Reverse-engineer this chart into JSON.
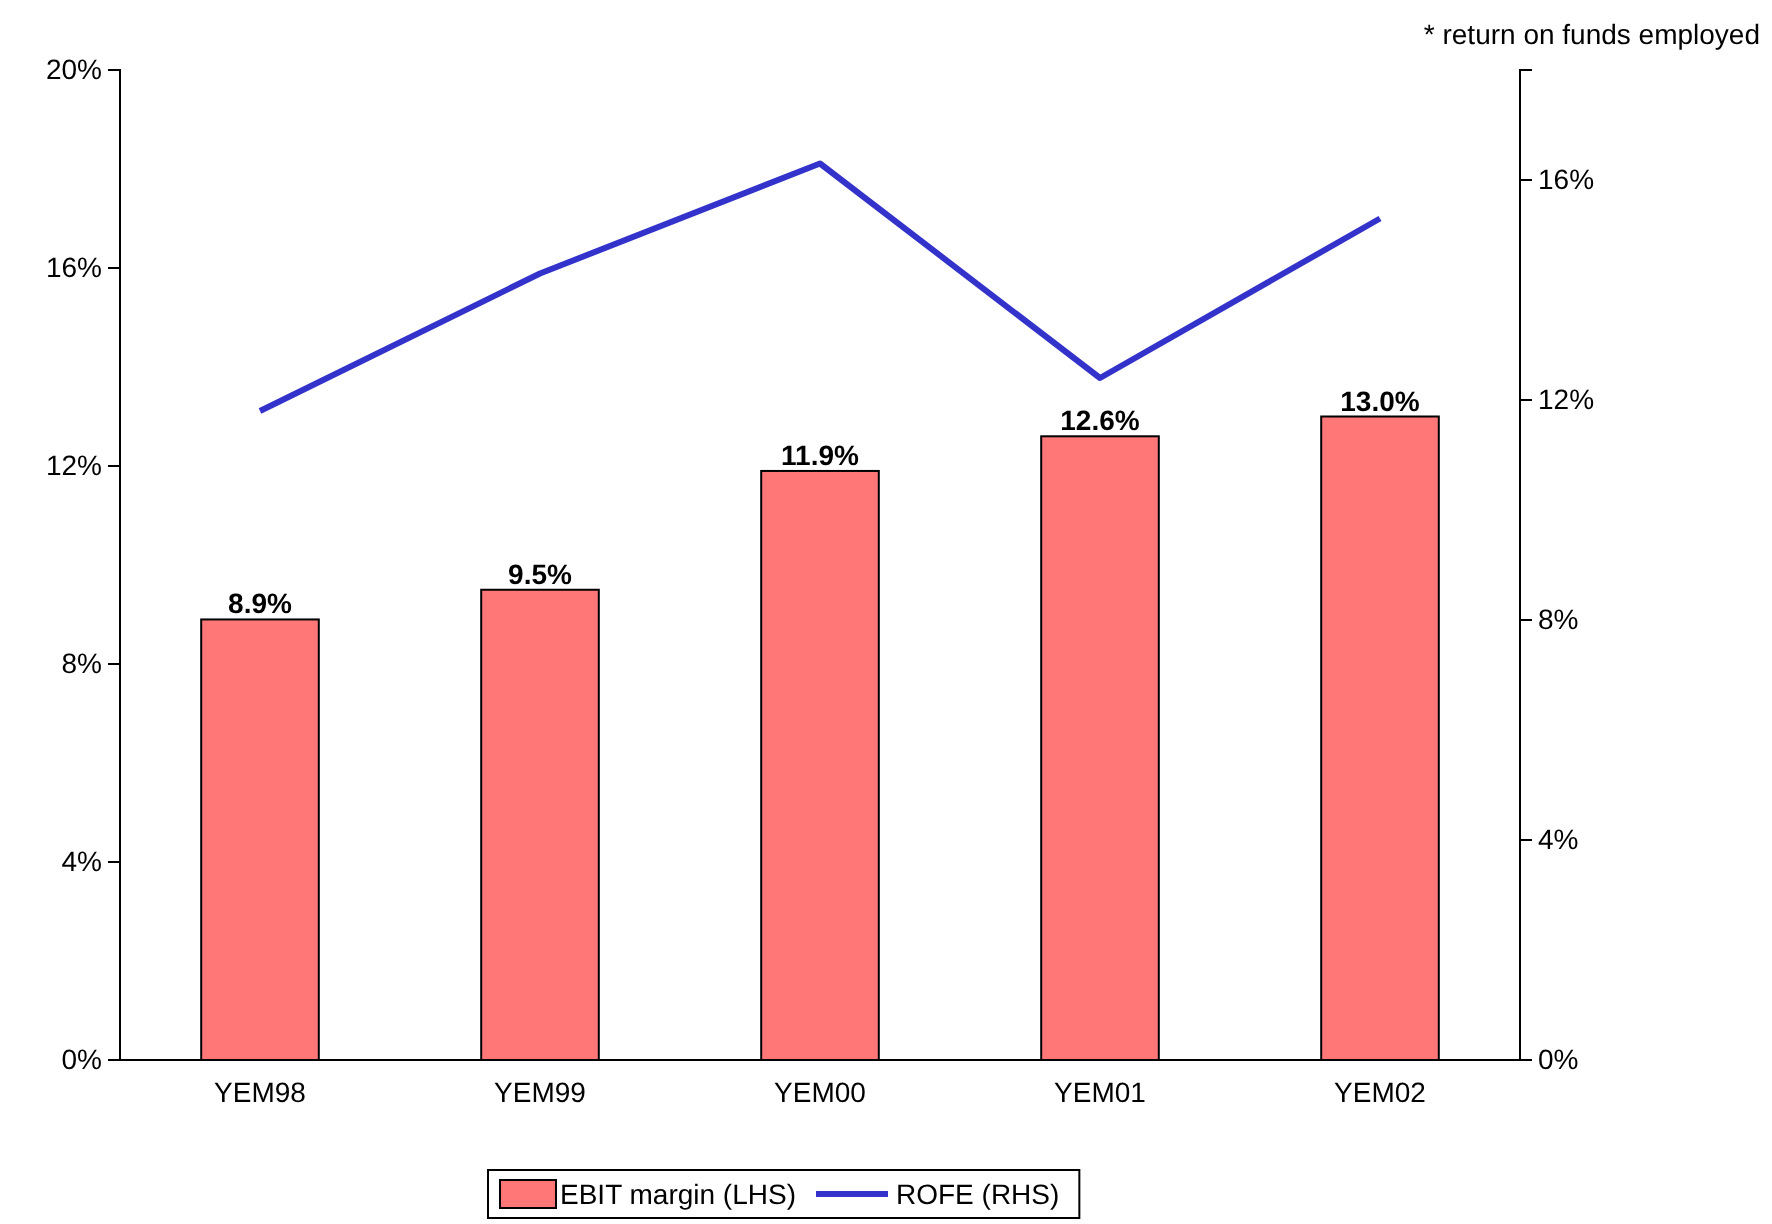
{
  "chart_data": {
    "type": "bar",
    "categories": [
      "YEM98",
      "YEM99",
      "YEM00",
      "YEM01",
      "YEM02"
    ],
    "series": [
      {
        "name": "EBIT margin (LHS)",
        "color": "#ff7777",
        "values": [
          8.9,
          9.5,
          11.9,
          12.6,
          13.0
        ],
        "value_labels": [
          "8.9%",
          "9.5%",
          "11.9%",
          "12.6%",
          "13.0%"
        ]
      },
      {
        "name": "ROFE (RHS)",
        "type": "line",
        "axis": "y2",
        "color": "#3333cc",
        "values": [
          11.8,
          14.3,
          16.3,
          12.4,
          15.3
        ]
      }
    ],
    "ylim": [
      0,
      20
    ],
    "yticks": [
      {
        "value": 0,
        "label": "0%"
      },
      {
        "value": 4,
        "label": "4%"
      },
      {
        "value": 8,
        "label": "8%"
      },
      {
        "value": 12,
        "label": "12%"
      },
      {
        "value": 16,
        "label": "16%"
      },
      {
        "value": 20,
        "label": "20%"
      }
    ],
    "y2lim": [
      0,
      18
    ],
    "y2ticks": [
      {
        "value": 0,
        "label": "0%"
      },
      {
        "value": 4,
        "label": "4%"
      },
      {
        "value": 8,
        "label": "8%"
      },
      {
        "value": 12,
        "label": "12%"
      },
      {
        "value": 16,
        "label": "16%"
      }
    ],
    "annotations": [
      "* return on funds employed"
    ],
    "legend": "bottom",
    "grid": false
  }
}
